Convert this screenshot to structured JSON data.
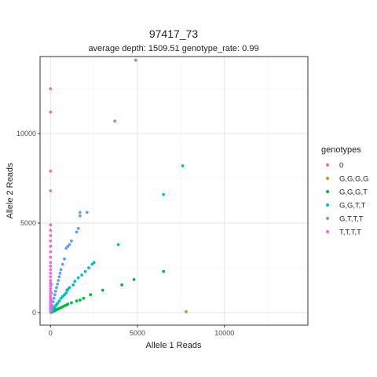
{
  "chart_data": {
    "type": "scatter",
    "title": "97417_73",
    "subtitle": "average depth:  1509.51  genotype_rate:  0.99",
    "xlabel": "Allele 1 Reads",
    "ylabel": "Allele 2 Reads",
    "xlim": [
      -600,
      14800
    ],
    "ylim": [
      -700,
      14300
    ],
    "x_ticks": [
      0,
      5000,
      10000
    ],
    "y_ticks": [
      0,
      5000,
      10000
    ],
    "x_minor": [
      2500,
      7500,
      12500
    ],
    "y_minor": [
      2500,
      7500,
      12500
    ],
    "grid": true,
    "legend": {
      "title": "genotypes",
      "position": "right"
    },
    "series": [
      {
        "name": "0",
        "color": "#F8766D",
        "points": []
      },
      {
        "name": "G,G,G,G",
        "color": "#B79F00",
        "points": [
          [
            7800,
            50
          ]
        ]
      },
      {
        "name": "G,G,G,T",
        "color": "#00BA38",
        "points": [
          [
            6500,
            2300
          ],
          [
            4800,
            1850
          ],
          [
            4100,
            1550
          ],
          [
            3000,
            1250
          ],
          [
            2300,
            1000
          ],
          [
            1900,
            800
          ],
          [
            1700,
            700
          ],
          [
            1500,
            650
          ],
          [
            1200,
            550
          ],
          [
            1000,
            480
          ],
          [
            900,
            420
          ],
          [
            800,
            380
          ],
          [
            700,
            330
          ],
          [
            600,
            280
          ],
          [
            500,
            230
          ],
          [
            400,
            200
          ],
          [
            350,
            170
          ],
          [
            300,
            140
          ],
          [
            250,
            110
          ],
          [
            200,
            90
          ],
          [
            150,
            70
          ],
          [
            100,
            50
          ],
          [
            60,
            30
          ],
          [
            30,
            15
          ]
        ]
      },
      {
        "name": "G,G,T,T",
        "color": "#00BFC4",
        "points": [
          [
            7600,
            8200
          ],
          [
            6500,
            6600
          ],
          [
            3900,
            3800
          ],
          [
            2500,
            2800
          ],
          [
            2400,
            2700
          ],
          [
            2200,
            2500
          ],
          [
            2000,
            2300
          ],
          [
            1800,
            2100
          ],
          [
            1600,
            1950
          ],
          [
            1400,
            1750
          ],
          [
            1300,
            1550
          ],
          [
            1100,
            1400
          ],
          [
            1000,
            1300
          ],
          [
            950,
            1250
          ],
          [
            900,
            1100
          ],
          [
            800,
            1000
          ],
          [
            700,
            900
          ],
          [
            600,
            800
          ],
          [
            500,
            650
          ],
          [
            400,
            520
          ],
          [
            350,
            450
          ],
          [
            300,
            380
          ],
          [
            250,
            320
          ],
          [
            200,
            260
          ],
          [
            150,
            200
          ],
          [
            100,
            140
          ],
          [
            60,
            80
          ],
          [
            30,
            40
          ]
        ]
      },
      {
        "name": "G,T,T,T",
        "color": "#619CFF",
        "points": [
          [
            4900,
            14100
          ],
          [
            3700,
            10700
          ],
          [
            2100,
            5600
          ],
          [
            1700,
            5600
          ],
          [
            1700,
            5400
          ],
          [
            1600,
            4700
          ],
          [
            1500,
            4500
          ],
          [
            1200,
            4000
          ],
          [
            1100,
            3800
          ],
          [
            1000,
            3700
          ],
          [
            900,
            3600
          ],
          [
            800,
            3000
          ],
          [
            700,
            2700
          ],
          [
            600,
            2400
          ],
          [
            550,
            2200
          ],
          [
            500,
            2000
          ],
          [
            450,
            1800
          ],
          [
            400,
            1600
          ],
          [
            350,
            1400
          ],
          [
            300,
            1200
          ],
          [
            250,
            1000
          ],
          [
            200,
            800
          ],
          [
            150,
            600
          ],
          [
            100,
            400
          ],
          [
            60,
            250
          ],
          [
            30,
            120
          ]
        ]
      },
      {
        "name": "T,T,T,T",
        "color": "#F564E3",
        "points": [
          [
            0,
            12500
          ],
          [
            0,
            11200
          ],
          [
            0,
            7900
          ],
          [
            0,
            6800
          ],
          [
            0,
            4900
          ],
          [
            0,
            4600
          ],
          [
            0,
            4300
          ],
          [
            0,
            4000
          ],
          [
            0,
            3700
          ],
          [
            0,
            3400
          ],
          [
            0,
            3100
          ],
          [
            0,
            2800
          ],
          [
            0,
            2600
          ],
          [
            0,
            2400
          ],
          [
            0,
            2200
          ],
          [
            0,
            2000
          ],
          [
            0,
            1800
          ],
          [
            0,
            1650
          ],
          [
            0,
            1500
          ],
          [
            0,
            1350
          ],
          [
            0,
            1200
          ],
          [
            0,
            1050
          ],
          [
            0,
            900
          ],
          [
            0,
            780
          ],
          [
            0,
            650
          ],
          [
            0,
            520
          ],
          [
            0,
            400
          ],
          [
            0,
            300
          ],
          [
            0,
            200
          ],
          [
            0,
            100
          ],
          [
            40,
            1600
          ],
          [
            40,
            1100
          ],
          [
            40,
            700
          ],
          [
            60,
            400
          ],
          [
            20,
            250
          ]
        ]
      }
    ]
  }
}
